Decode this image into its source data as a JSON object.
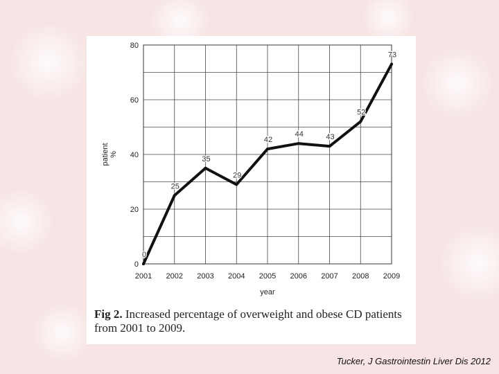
{
  "colors": {
    "background": "#f7e4e4",
    "panel": "#ffffff",
    "line": "#111111",
    "grid": "#444444"
  },
  "caption": {
    "figure_label": "Fig 2.",
    "text": "Increased percentage of overweight and obese CD patients from 2001 to 2009."
  },
  "source": "Tucker, J Gastrointestin Liver Dis 2012",
  "chart_data": {
    "type": "line",
    "x": [
      2001,
      2002,
      2003,
      2004,
      2005,
      2006,
      2007,
      2008,
      2009
    ],
    "y": [
      0,
      25,
      35,
      29,
      42,
      44,
      43,
      52,
      73
    ],
    "data_labels": [
      "0",
      "25",
      "35",
      "29",
      "42",
      "44",
      "43",
      "52",
      "73"
    ],
    "xlabel": "year",
    "ylabel": "patient %",
    "ylim": [
      0,
      80
    ],
    "yticks": [
      0,
      20,
      40,
      60,
      80
    ],
    "grid": true,
    "legend": "none"
  }
}
